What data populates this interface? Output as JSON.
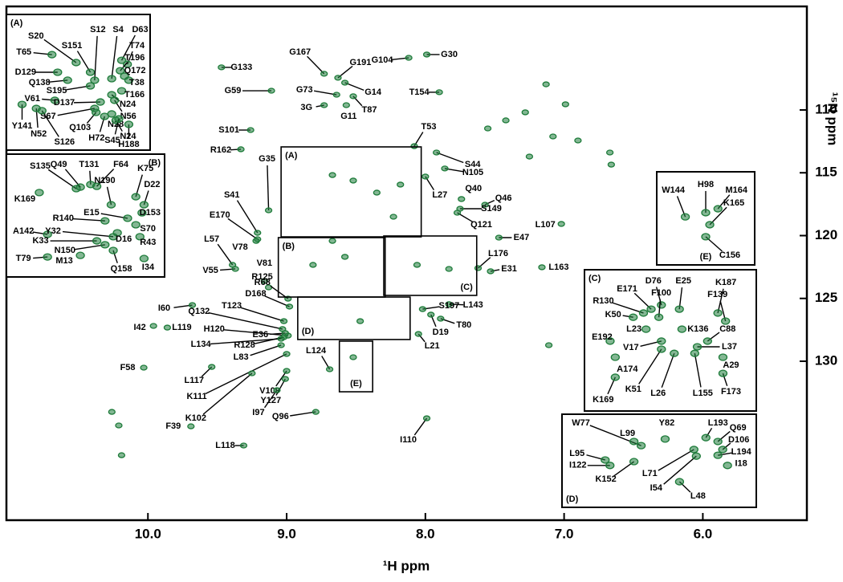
{
  "chart_data": [
    {
      "type": "scatter",
      "xlabel": "¹H ppm",
      "ylabel": "¹⁵N ppm",
      "color": "#1e7b3a",
      "xlim": [
        11.02,
        5.25
      ],
      "ylim": [
        101.76,
        142.65
      ],
      "xticks": [
        {
          "value": 10,
          "label": "10.0"
        },
        {
          "value": 9,
          "label": "9.0"
        },
        {
          "value": 8,
          "label": "8.0"
        },
        {
          "value": 7,
          "label": "7.0"
        },
        {
          "value": 6,
          "label": "6.0"
        }
      ],
      "yticks": [
        110,
        115,
        120,
        125,
        130
      ],
      "peaks": {
        "labels": [
          "G133",
          "G59",
          "G167",
          "G73",
          "3G",
          "G11",
          "T87",
          "G14",
          "G191",
          "G104",
          "G30",
          "T154",
          "T53",
          "S44",
          "N105",
          "L27",
          "Q40",
          "Q46",
          "S149",
          "Q121",
          "L107",
          "E47",
          "L176",
          "E31",
          "L163",
          "L143",
          "S197",
          "T80",
          "D19",
          "L21",
          "S101",
          "R162",
          "G35",
          "S41",
          "E170",
          "L57",
          "V78",
          "V55",
          "V81",
          "R125",
          "R68",
          "D168",
          "T123",
          "Q132",
          "H120",
          "R128",
          "L134",
          "E36",
          "L83",
          "L117",
          "K111",
          "K102",
          "V109",
          "Y127",
          "I97",
          "L124",
          "I60",
          "I42",
          "L119",
          "F58",
          "Q96",
          "I110",
          "F39",
          "L118"
        ],
        "x": [
          9.47,
          9.11,
          8.73,
          8.64,
          8.73,
          8.57,
          8.52,
          8.58,
          8.63,
          8.12,
          7.99,
          7.9,
          8.08,
          7.92,
          7.86,
          8.0,
          7.74,
          7.57,
          7.75,
          7.77,
          7.02,
          7.47,
          7.62,
          7.53,
          7.16,
          7.83,
          8.02,
          7.89,
          7.96,
          8.05,
          9.26,
          9.33,
          9.13,
          9.21,
          9.21,
          9.39,
          9.22,
          9.37,
          9.16,
          9.13,
          8.99,
          8.98,
          9.02,
          9.03,
          8.99,
          9.02,
          9.04,
          9.01,
          9.04,
          9.54,
          9.0,
          9.25,
          9.0,
          9.01,
          9.07,
          8.69,
          9.68,
          9.96,
          9.86,
          10.03,
          8.79,
          7.99,
          9.69,
          9.31
        ],
        "y": [
          106.61,
          108.47,
          107.12,
          108.79,
          109.62,
          109.62,
          108.91,
          107.83,
          107.44,
          105.85,
          105.59,
          108.59,
          112.88,
          113.39,
          114.66,
          115.3,
          117.09,
          117.54,
          117.86,
          118.18,
          119.07,
          120.16,
          122.59,
          122.84,
          122.52,
          125.46,
          125.85,
          126.61,
          126.29,
          127.83,
          111.6,
          113.13,
          117.99,
          119.78,
          120.29,
          122.33,
          120.42,
          122.65,
          123.61,
          124.12,
          125.02,
          125.65,
          126.81,
          127.44,
          127.96,
          128.08,
          128.21,
          127.76,
          128.72,
          130.45,
          129.42,
          130.96,
          130.77,
          131.41,
          132.3,
          130.64,
          125.53,
          127.19,
          127.32,
          130.51,
          134.03,
          134.54,
          135.18,
          136.71
        ]
      },
      "unlabeled_peaks": {
        "x": [
          10.26,
          10.21,
          10.19,
          7.55,
          7.42,
          7.28,
          7.13,
          7.08,
          6.99,
          6.9,
          6.67,
          6.66,
          7.25,
          7.11,
          8.67,
          8.52,
          8.35,
          8.18,
          8.23,
          8.81,
          8.58,
          8.06,
          7.83,
          8.47,
          8.52,
          8.67
        ],
        "y": [
          134.03,
          135.11,
          137.48,
          111.47,
          110.83,
          110.19,
          107.96,
          112.11,
          109.55,
          112.43,
          113.39,
          114.35,
          113.71,
          128.72,
          115.18,
          115.62,
          116.58,
          115.94,
          118.5,
          122.33,
          121.69,
          122.33,
          122.65,
          126.81,
          129.68,
          120.42
        ]
      }
    },
    {
      "type": "scatter",
      "title": "(A)",
      "xlim": [
        9.04,
        8.03
      ],
      "ylim": [
        112.94,
        120.1
      ],
      "peaks": {
        "labels": [
          "S20",
          "S151",
          "S12",
          "S4",
          "D63",
          "T74",
          "T65",
          "T196",
          "Q172",
          "D129",
          "T38",
          "Q138",
          "T166",
          "S195",
          "N24",
          "V61",
          "N56",
          "D137",
          "S67",
          "N28",
          "Q103",
          "Y141",
          "N24",
          "H72",
          "N52",
          "S45",
          "H188",
          "S126"
        ],
        "x": [
          8.55,
          8.45,
          8.42,
          8.3,
          8.23,
          8.19,
          8.72,
          8.24,
          8.21,
          8.68,
          8.18,
          8.61,
          8.23,
          8.45,
          8.3,
          8.7,
          8.28,
          8.38,
          8.42,
          8.3,
          8.41,
          8.93,
          8.27,
          8.35,
          8.83,
          8.25,
          8.18,
          8.79
        ],
        "y": [
          115.48,
          115.99,
          116.41,
          116.33,
          115.36,
          115.57,
          115.06,
          115.91,
          116.2,
          115.99,
          116.41,
          116.41,
          116.97,
          116.71,
          117.18,
          117.47,
          117.47,
          117.56,
          117.9,
          118.19,
          118.11,
          117.69,
          118.53,
          118.32,
          117.9,
          118.45,
          118.74,
          118.02
        ]
      }
    },
    {
      "type": "scatter",
      "title": "(B)",
      "xlim": [
        9.06,
        8.29
      ],
      "ylim": [
        120.16,
        124.89
      ],
      "peaks": {
        "labels": [
          "S135",
          "Q49",
          "T131",
          "F64",
          "N190",
          "K75",
          "D22",
          "K169",
          "E15",
          "D153",
          "R140",
          "S70",
          "A142",
          "Y32",
          "D16",
          "R43",
          "K33",
          "N150",
          "T79",
          "M13",
          "Q158",
          "I34"
        ],
        "x": [
          8.72,
          8.7,
          8.65,
          8.62,
          8.55,
          8.43,
          8.39,
          8.9,
          8.47,
          8.4,
          8.58,
          8.43,
          8.86,
          8.54,
          8.52,
          8.41,
          8.62,
          8.58,
          8.86,
          8.7,
          8.54,
          8.39
        ],
        "y": [
          121.49,
          121.43,
          121.33,
          121.4,
          122.11,
          121.8,
          122.11,
          121.64,
          122.63,
          122.42,
          122.73,
          122.88,
          123.25,
          123.34,
          123.19,
          123.34,
          123.5,
          123.65,
          124.12,
          124.06,
          123.87,
          124.18
        ]
      }
    },
    {
      "type": "scatter",
      "title": "(C)",
      "xlim": [
        8.3,
        7.63
      ],
      "ylim": [
        120.03,
        124.76
      ],
      "peaks": {
        "labels": [
          "D76",
          "E25",
          "K187",
          "E171",
          "F100",
          "F139",
          "R130",
          "K50",
          "K136",
          "C88",
          "L23",
          "E192",
          "V17",
          "L37",
          "A29",
          "A174",
          "K51",
          "L26",
          "L155",
          "F173",
          "K169"
        ],
        "x": [
          8.0,
          7.93,
          7.78,
          8.04,
          8.01,
          7.75,
          8.07,
          8.11,
          7.92,
          7.82,
          8.06,
          8.2,
          8.0,
          7.86,
          7.76,
          8.18,
          8.0,
          7.95,
          7.87,
          7.76,
          8.18
        ],
        "y": [
          121.21,
          121.35,
          121.48,
          121.35,
          121.62,
          121.75,
          121.48,
          121.62,
          122.02,
          122.42,
          122.02,
          122.42,
          122.42,
          122.61,
          122.96,
          122.96,
          122.69,
          122.83,
          122.83,
          123.5,
          123.63
        ]
      }
    },
    {
      "type": "scatter",
      "title": "(D)",
      "xlim": [
        8.92,
        8.11
      ],
      "ylim": [
        124.89,
        128.27
      ],
      "peaks": {
        "labels": [
          "W77",
          "Y82",
          "L193",
          "Q69",
          "L99",
          "D106",
          "L95",
          "L194",
          "I122",
          "I18",
          "K152",
          "L71",
          "I54",
          "L48"
        ],
        "x": [
          8.59,
          8.49,
          8.32,
          8.27,
          8.62,
          8.25,
          8.74,
          8.27,
          8.72,
          8.23,
          8.62,
          8.37,
          8.36,
          8.43
        ],
        "y": [
          126.03,
          125.79,
          125.74,
          125.88,
          125.88,
          126.17,
          126.55,
          126.38,
          126.75,
          126.75,
          126.61,
          126.17,
          126.41,
          127.34
        ]
      }
    },
    {
      "type": "scatter",
      "title": "(E)",
      "xlim": [
        8.62,
        8.38
      ],
      "ylim": [
        128.4,
        132.43
      ],
      "peaks": {
        "labels": [
          "W144",
          "H98",
          "M164",
          "K165",
          "C156"
        ],
        "x": [
          8.55,
          8.5,
          8.47,
          8.49,
          8.5
        ],
        "y": [
          130.35,
          130.17,
          130.0,
          130.69,
          131.21
        ]
      }
    }
  ]
}
